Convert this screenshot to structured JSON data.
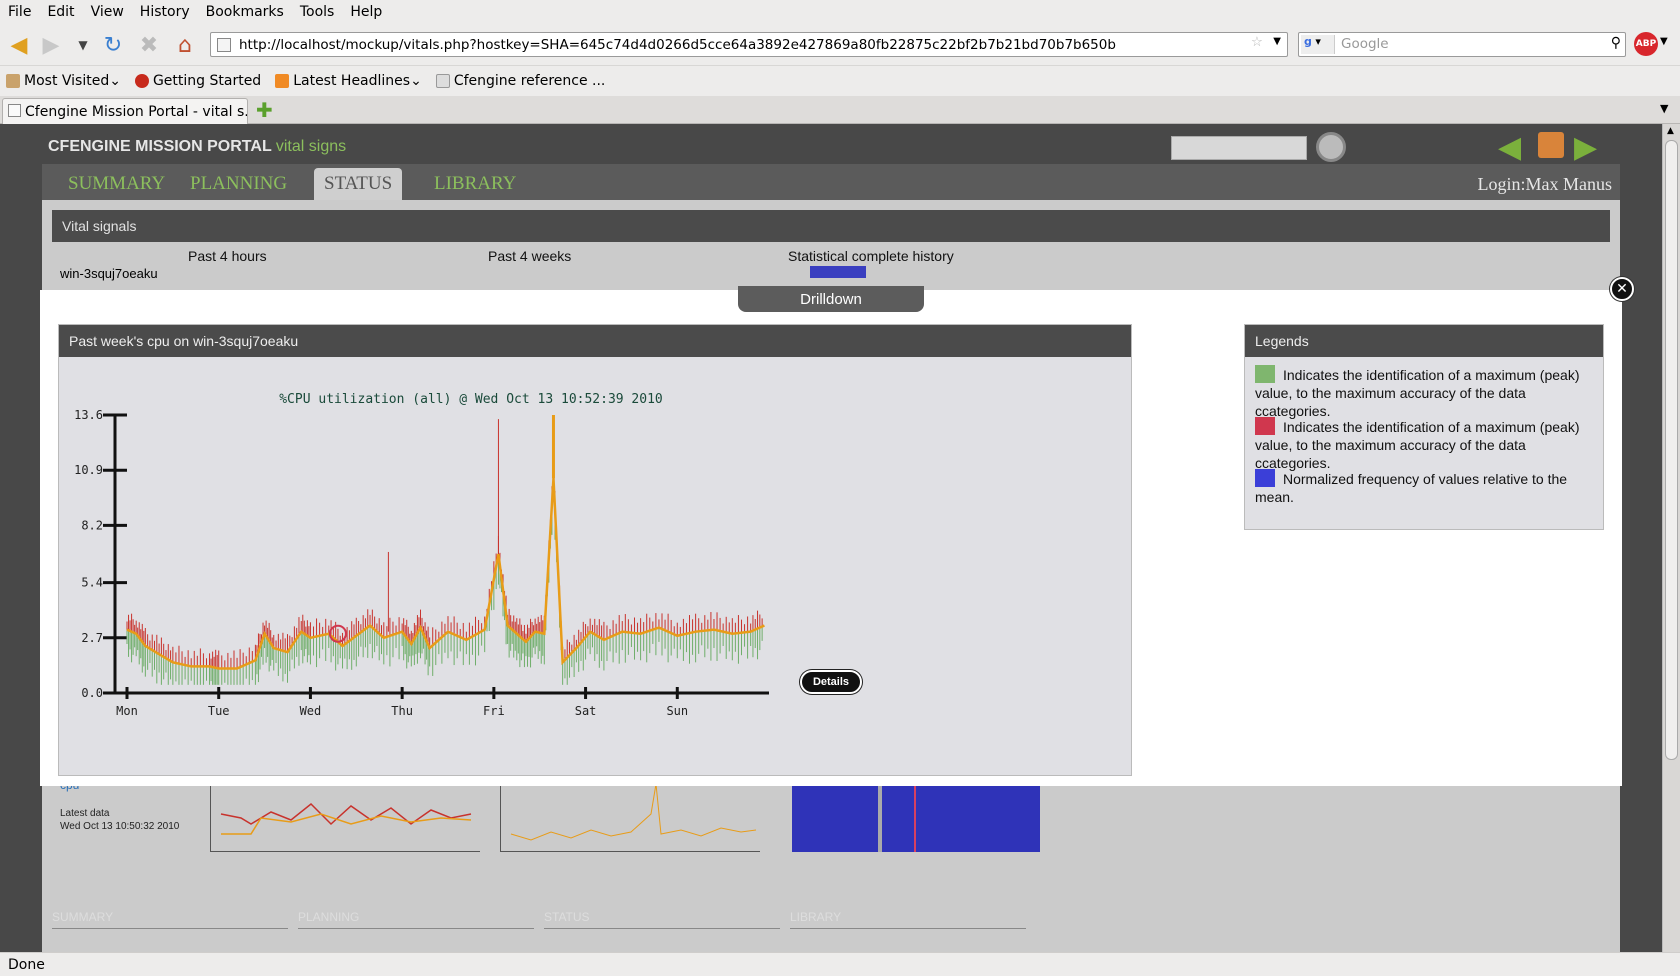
{
  "browser": {
    "menu": [
      "File",
      "Edit",
      "View",
      "History",
      "Bookmarks",
      "Tools",
      "Help"
    ],
    "url": "http://localhost/mockup/vitals.php?hostkey=SHA=645c74d4d0266d5cce64a3892e427869a80fb22875c22bf2b7b21bd70b7b650b",
    "search_placeholder": "Google",
    "bookmarks": [
      "Most Visited",
      "Getting Started",
      "Latest Headlines",
      "Cfengine reference ..."
    ],
    "tab_title": "Cfengine Mission Portal - vital s...",
    "status": "Done"
  },
  "portal": {
    "title": "CFENGINE MISSION PORTAL",
    "subtitle": "vital signs",
    "tabs": [
      "SUMMARY",
      "PLANNING",
      "STATUS",
      "LIBRARY"
    ],
    "active_tab": "STATUS",
    "login": "Login:Max Manus",
    "section": "Vital signals",
    "columns": [
      "Past 4 hours",
      "Past 4 weeks",
      "Statistical complete history"
    ],
    "host": "win-3squj7oeaku",
    "metric": "cpu",
    "latest_label": "Latest data",
    "latest_value": "Wed Oct 13 10:50:32 2010",
    "details": "Details",
    "footer": [
      "SUMMARY",
      "PLANNING",
      "STATUS",
      "LIBRARY"
    ]
  },
  "modal": {
    "tab": "Drilldown",
    "chart_title": "Past week's cpu on win-3squj7oeaku",
    "legend_title": "Legends",
    "legends": [
      {
        "color": "#7fb66e",
        "text": "Indicates the identification of a maximum (peak) value, to the maximum accuracy of the data ccategories."
      },
      {
        "color": "#d0374e",
        "text": "Indicates the identification of a maximum (peak) value, to the maximum accuracy of the data ccategories."
      },
      {
        "color": "#3b3fd8",
        "text": "Normalized frequency of values relative to the mean."
      }
    ]
  },
  "chart_data": {
    "type": "line",
    "title": "%CPU utilization (all) @ Wed Oct 13 10:52:39 2010",
    "xlabel": "",
    "ylabel": "",
    "x_ticks": [
      "Mon",
      "Tue",
      "Wed",
      "Thu",
      "Fri",
      "Sat",
      "Sun"
    ],
    "y_ticks": [
      0.0,
      2.7,
      5.4,
      8.2,
      10.9,
      13.6
    ],
    "ylim": [
      0,
      13.6
    ],
    "x_range_days": [
      0,
      7
    ],
    "series": [
      {
        "color": "#e89c18",
        "x": [
          0.0,
          0.1,
          0.2,
          0.35,
          0.5,
          0.7,
          0.9,
          1.0,
          1.2,
          1.4,
          1.5,
          1.6,
          1.75,
          1.9,
          2.0,
          2.2,
          2.35,
          2.5,
          2.65,
          2.8,
          3.0,
          3.1,
          3.2,
          3.3,
          3.5,
          3.7,
          3.9,
          4.05,
          4.15,
          4.25,
          4.35,
          4.45,
          4.55,
          4.65,
          4.75,
          4.9,
          5.05,
          5.2,
          5.4,
          5.6,
          5.8,
          6.0,
          6.2,
          6.4,
          6.6,
          6.8,
          6.95
        ],
        "values": [
          3.1,
          2.9,
          2.3,
          1.9,
          1.5,
          1.3,
          1.3,
          1.2,
          1.2,
          1.6,
          2.9,
          2.2,
          2.0,
          3.0,
          2.7,
          2.9,
          2.3,
          2.8,
          3.3,
          2.7,
          3.0,
          2.4,
          3.2,
          2.2,
          3.0,
          2.6,
          3.1,
          6.8,
          3.3,
          2.9,
          2.5,
          3.0,
          2.9,
          10.5,
          1.5,
          2.2,
          3.0,
          2.6,
          3.0,
          2.9,
          3.2,
          2.8,
          3.0,
          3.1,
          2.9,
          3.0,
          3.3
        ]
      },
      {
        "color": "#d0374e",
        "x": [
          2.3
        ],
        "values": [
          2.9
        ]
      }
    ]
  }
}
